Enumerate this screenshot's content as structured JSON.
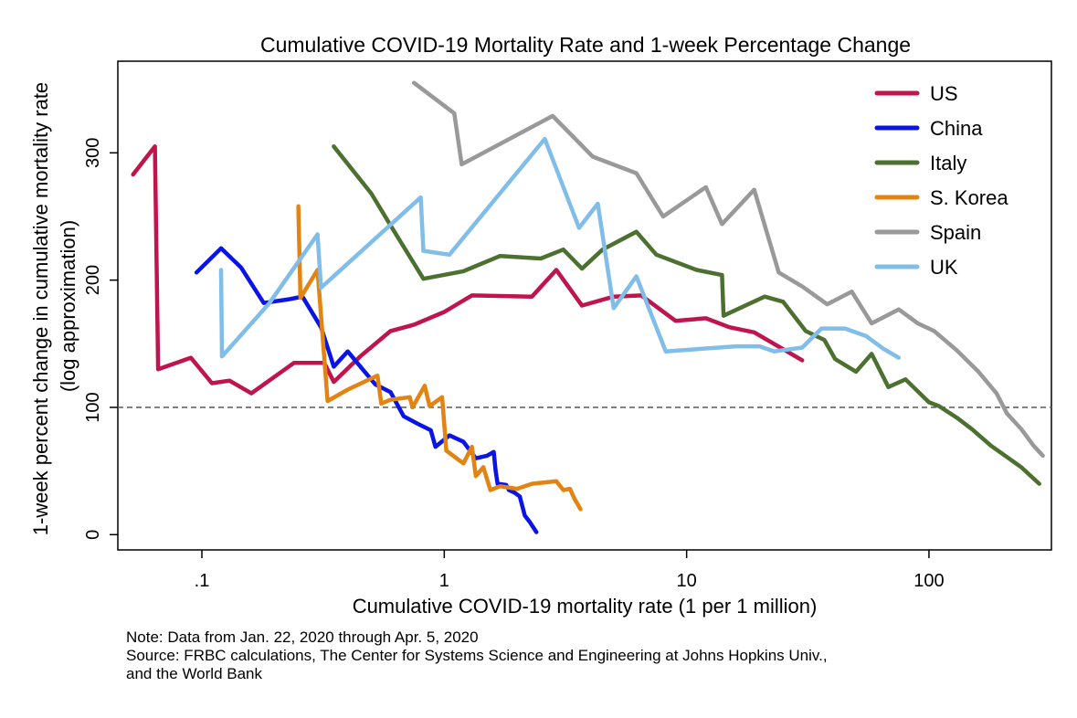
{
  "chart_data": {
    "type": "line",
    "title": "Cumulative COVID-19 Mortality Rate and 1-week Percentage Change",
    "xlabel": "Cumulative COVID-19 mortality rate (1 per 1 million)",
    "ylabel_lines": [
      "1-week percent change in cumulative mortality rate",
      "(log approximation)"
    ],
    "x_scale": "log",
    "xlim": [
      0.045,
      320
    ],
    "ylim": [
      -12,
      372
    ],
    "x_ticks": [
      {
        "value": 0.1,
        "label": ".1"
      },
      {
        "value": 1,
        "label": "1"
      },
      {
        "value": 10,
        "label": "10"
      },
      {
        "value": 100,
        "label": "100"
      }
    ],
    "y_ticks": [
      {
        "value": 0,
        "label": "0"
      },
      {
        "value": 100,
        "label": "100"
      },
      {
        "value": 200,
        "label": "200"
      },
      {
        "value": 300,
        "label": "300"
      }
    ],
    "reference_line": {
      "y": 100,
      "style": "dashed"
    },
    "grid": false,
    "legend_position": "top-right",
    "series": [
      {
        "name": "US",
        "color": "#c0144c",
        "points": [
          [
            0.052,
            283
          ],
          [
            0.064,
            305
          ],
          [
            0.066,
            130
          ],
          [
            0.09,
            139
          ],
          [
            0.11,
            119
          ],
          [
            0.13,
            121
          ],
          [
            0.16,
            111
          ],
          [
            0.24,
            135
          ],
          [
            0.32,
            135
          ],
          [
            0.35,
            120
          ],
          [
            0.45,
            140
          ],
          [
            0.6,
            160
          ],
          [
            0.75,
            165
          ],
          [
            1.0,
            175
          ],
          [
            1.3,
            188
          ],
          [
            2.3,
            187
          ],
          [
            2.9,
            208
          ],
          [
            3.7,
            180
          ],
          [
            5.0,
            187
          ],
          [
            6.5,
            188
          ],
          [
            9.0,
            168
          ],
          [
            12,
            170
          ],
          [
            15,
            163
          ],
          [
            19,
            159
          ],
          [
            30,
            137
          ]
        ]
      },
      {
        "name": "China",
        "color": "#0a14e6",
        "points": [
          [
            0.095,
            206
          ],
          [
            0.12,
            225
          ],
          [
            0.145,
            210
          ],
          [
            0.18,
            182
          ],
          [
            0.23,
            185
          ],
          [
            0.26,
            187
          ],
          [
            0.31,
            163
          ],
          [
            0.35,
            132
          ],
          [
            0.4,
            144
          ],
          [
            0.46,
            130
          ],
          [
            0.52,
            118
          ],
          [
            0.6,
            112
          ],
          [
            0.68,
            93
          ],
          [
            0.78,
            87
          ],
          [
            0.88,
            82
          ],
          [
            0.92,
            69
          ],
          [
            1.05,
            78
          ],
          [
            1.2,
            73
          ],
          [
            1.35,
            60
          ],
          [
            1.5,
            62
          ],
          [
            1.6,
            65
          ],
          [
            1.63,
            50
          ],
          [
            1.66,
            40
          ],
          [
            1.8,
            39
          ],
          [
            1.85,
            35
          ],
          [
            1.95,
            33
          ],
          [
            2.05,
            30
          ],
          [
            2.15,
            15
          ],
          [
            2.25,
            10
          ],
          [
            2.4,
            2
          ]
        ]
      },
      {
        "name": "Italy",
        "color": "#4c7030",
        "points": [
          [
            0.35,
            305
          ],
          [
            0.5,
            268
          ],
          [
            0.6,
            243
          ],
          [
            0.82,
            201
          ],
          [
            1.2,
            207
          ],
          [
            1.7,
            219
          ],
          [
            2.5,
            217
          ],
          [
            3.1,
            224
          ],
          [
            3.7,
            209
          ],
          [
            4.5,
            224
          ],
          [
            6.2,
            238
          ],
          [
            7.5,
            220
          ],
          [
            11,
            208
          ],
          [
            14,
            204
          ],
          [
            14.2,
            172
          ],
          [
            21,
            187
          ],
          [
            25,
            183
          ],
          [
            31,
            160
          ],
          [
            37,
            153
          ],
          [
            41,
            138
          ],
          [
            50,
            128
          ],
          [
            58,
            142
          ],
          [
            68,
            116
          ],
          [
            80,
            122
          ],
          [
            100,
            104
          ],
          [
            110,
            101
          ],
          [
            130,
            92
          ],
          [
            150,
            83
          ],
          [
            180,
            70
          ],
          [
            240,
            53
          ],
          [
            285,
            40
          ]
        ]
      },
      {
        "name": "S. Korea",
        "color": "#e38412",
        "points": [
          [
            0.25,
            258
          ],
          [
            0.255,
            186
          ],
          [
            0.3,
            208
          ],
          [
            0.33,
            105
          ],
          [
            0.4,
            114
          ],
          [
            0.53,
            125
          ],
          [
            0.55,
            103
          ],
          [
            0.6,
            106
          ],
          [
            0.72,
            108
          ],
          [
            0.74,
            100
          ],
          [
            0.83,
            117
          ],
          [
            0.87,
            101
          ],
          [
            0.98,
            108
          ],
          [
            1.02,
            66
          ],
          [
            1.2,
            56
          ],
          [
            1.3,
            69
          ],
          [
            1.35,
            46
          ],
          [
            1.45,
            53
          ],
          [
            1.55,
            35
          ],
          [
            1.7,
            38
          ],
          [
            2.0,
            36
          ],
          [
            2.3,
            40
          ],
          [
            2.9,
            42
          ],
          [
            3.1,
            35
          ],
          [
            3.3,
            36
          ],
          [
            3.45,
            28
          ],
          [
            3.65,
            20
          ]
        ]
      },
      {
        "name": "Spain",
        "color": "#999999",
        "points": [
          [
            0.75,
            355
          ],
          [
            1.1,
            331
          ],
          [
            1.18,
            291
          ],
          [
            2.8,
            329
          ],
          [
            4.1,
            297
          ],
          [
            6.2,
            284
          ],
          [
            8.0,
            250
          ],
          [
            12,
            273
          ],
          [
            14,
            244
          ],
          [
            19,
            271
          ],
          [
            24,
            206
          ],
          [
            30,
            195
          ],
          [
            38,
            181
          ],
          [
            48,
            191
          ],
          [
            58,
            166
          ],
          [
            75,
            177
          ],
          [
            90,
            166
          ],
          [
            105,
            160
          ],
          [
            130,
            145
          ],
          [
            160,
            128
          ],
          [
            190,
            111
          ],
          [
            210,
            95
          ],
          [
            240,
            83
          ],
          [
            270,
            70
          ],
          [
            295,
            62
          ]
        ]
      },
      {
        "name": "UK",
        "color": "#80bde8",
        "points": [
          [
            0.12,
            208
          ],
          [
            0.121,
            140
          ],
          [
            0.19,
            182
          ],
          [
            0.3,
            236
          ],
          [
            0.31,
            194
          ],
          [
            0.8,
            265
          ],
          [
            0.82,
            223
          ],
          [
            1.05,
            220
          ],
          [
            2.6,
            311
          ],
          [
            3.6,
            241
          ],
          [
            4.3,
            260
          ],
          [
            5.0,
            178
          ],
          [
            6.2,
            203
          ],
          [
            8.2,
            144
          ],
          [
            16,
            148
          ],
          [
            20,
            148
          ],
          [
            23,
            144
          ],
          [
            30,
            147
          ],
          [
            36,
            162
          ],
          [
            45,
            162
          ],
          [
            55,
            156
          ],
          [
            65,
            146
          ],
          [
            75,
            139
          ]
        ]
      }
    ]
  },
  "notes": {
    "line1": "Note: Data from Jan. 22, 2020 through Apr. 5, 2020",
    "line2": "Source: FRBC calculations, The Center for Systems Science and Engineering at Johns Hopkins Univ.,",
    "line3": "and the World Bank"
  }
}
